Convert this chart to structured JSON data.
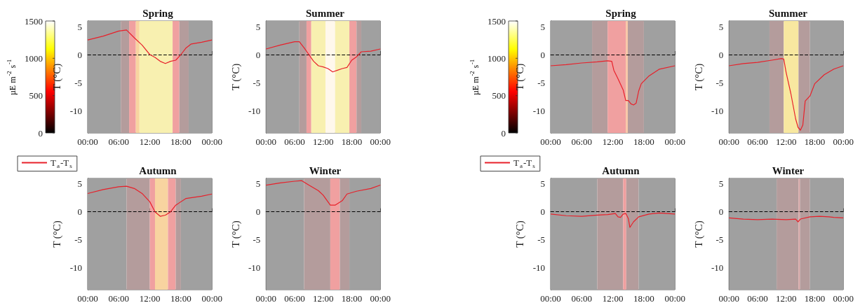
{
  "chart_data": [
    {
      "type": "line",
      "title": "Spring",
      "ylabel": "T (°C)",
      "clabel": "µE m$^{-2}$ s$^{-1}$",
      "clim": [
        0,
        1500
      ],
      "cticks": [
        0,
        500,
        1000,
        1500
      ],
      "xlim": [
        0,
        24
      ],
      "xticks": [
        {
          "value": 0,
          "label": "00:00"
        },
        {
          "value": 6,
          "label": "06:00"
        },
        {
          "value": 12,
          "label": "12:00"
        },
        {
          "value": 18,
          "label": "18:00"
        },
        {
          "value": 24,
          "label": "00:00"
        }
      ],
      "ylim": [
        -14,
        6
      ],
      "yticks": [
        -10,
        -5,
        0,
        5
      ],
      "ref_lines": [
        {
          "axis": "y",
          "value": 0,
          "color": "#000000",
          "line_style": "dashed"
        }
      ],
      "bands": [
        {
          "axis": "x",
          "from": 0,
          "to": 6.4,
          "color": "#a0a0a0"
        },
        {
          "axis": "x",
          "from": 6.4,
          "to": 8,
          "color": "#b49c9c"
        },
        {
          "axis": "x",
          "from": 8,
          "to": 9.3,
          "color": "#f0a0a0"
        },
        {
          "axis": "x",
          "from": 9.3,
          "to": 10,
          "color": "#f8d4a0"
        },
        {
          "axis": "x",
          "from": 10,
          "to": 16.4,
          "color": "#f8f0b0"
        },
        {
          "axis": "x",
          "from": 16.4,
          "to": 17.7,
          "color": "#f0a0a0"
        },
        {
          "axis": "x",
          "from": 17.7,
          "to": 19.5,
          "color": "#b49c9c"
        },
        {
          "axis": "x",
          "from": 19.5,
          "to": 24,
          "color": "#a0a0a0"
        }
      ],
      "series": [
        {
          "color": "#e8202a",
          "x": [
            0,
            3,
            6,
            7.5,
            9,
            10.5,
            12,
            13,
            14,
            15,
            16,
            17,
            18,
            19,
            20,
            22,
            24
          ],
          "values": [
            2.6,
            3.3,
            4.2,
            4.4,
            3.0,
            1.7,
            0.0,
            -0.5,
            -1.2,
            -1.6,
            -1.2,
            -1.0,
            0.0,
            1.2,
            1.9,
            2.2,
            2.6
          ]
        }
      ]
    },
    {
      "type": "line",
      "title": "Summer",
      "ylabel": "T (°C)",
      "xlim": [
        0,
        24
      ],
      "xticks": [
        {
          "value": 0,
          "label": "00:00"
        },
        {
          "value": 6,
          "label": "06:00"
        },
        {
          "value": 12,
          "label": "12:00"
        },
        {
          "value": 18,
          "label": "18:00"
        },
        {
          "value": 24,
          "label": "00:00"
        }
      ],
      "ylim": [
        -14,
        6
      ],
      "yticks": [
        -10,
        -5,
        0,
        5
      ],
      "ref_lines": [
        {
          "axis": "y",
          "value": 0,
          "color": "#000000",
          "line_style": "dashed"
        }
      ],
      "bands": [
        {
          "axis": "x",
          "from": 0,
          "to": 7,
          "color": "#a0a0a0"
        },
        {
          "axis": "x",
          "from": 7,
          "to": 8.5,
          "color": "#b49c9c"
        },
        {
          "axis": "x",
          "from": 8.5,
          "to": 9.5,
          "color": "#f0a0a0"
        },
        {
          "axis": "x",
          "from": 9.5,
          "to": 12.5,
          "color": "#f8f0b0"
        },
        {
          "axis": "x",
          "from": 12.5,
          "to": 14.5,
          "color": "#fff8ec"
        },
        {
          "axis": "x",
          "from": 14.5,
          "to": 17.5,
          "color": "#f8f0b0"
        },
        {
          "axis": "x",
          "from": 17.5,
          "to": 19,
          "color": "#f0a0a0"
        },
        {
          "axis": "x",
          "from": 19,
          "to": 20,
          "color": "#b49c9c"
        },
        {
          "axis": "x",
          "from": 20,
          "to": 24,
          "color": "#a0a0a0"
        }
      ],
      "series": [
        {
          "color": "#e8202a",
          "x": [
            0,
            3,
            6,
            7,
            8,
            9,
            10,
            11,
            12,
            13,
            14,
            15,
            16,
            17,
            18,
            19,
            20,
            22,
            24
          ],
          "values": [
            1.0,
            1.7,
            2.3,
            2.3,
            1.2,
            0.0,
            -1.2,
            -2.0,
            -2.2,
            -2.5,
            -3.1,
            -2.8,
            -2.5,
            -2.3,
            -1.0,
            -0.4,
            0.5,
            0.6,
            1.0
          ]
        }
      ]
    },
    {
      "type": "line",
      "title": "Autumn",
      "ylabel": "T (°C)",
      "legend": "top left",
      "xlim": [
        0,
        24
      ],
      "xticks": [
        {
          "value": 0,
          "label": "00:00"
        },
        {
          "value": 6,
          "label": "06:00"
        },
        {
          "value": 12,
          "label": "12:00"
        },
        {
          "value": 18,
          "label": "18:00"
        },
        {
          "value": 24,
          "label": "00:00"
        }
      ],
      "ylim": [
        -14,
        6
      ],
      "yticks": [
        -10,
        -5,
        0,
        5
      ],
      "ref_lines": [
        {
          "axis": "y",
          "value": 0,
          "color": "#000000",
          "line_style": "dashed"
        }
      ],
      "bands": [
        {
          "axis": "x",
          "from": 0,
          "to": 7.5,
          "color": "#a0a0a0"
        },
        {
          "axis": "x",
          "from": 7.5,
          "to": 12,
          "color": "#b49c9c"
        },
        {
          "axis": "x",
          "from": 12,
          "to": 13,
          "color": "#f0a0a0"
        },
        {
          "axis": "x",
          "from": 13,
          "to": 15.5,
          "color": "#f8d4a0"
        },
        {
          "axis": "x",
          "from": 15.5,
          "to": 17,
          "color": "#f0a0a0"
        },
        {
          "axis": "x",
          "from": 17,
          "to": 18,
          "color": "#b49c9c"
        },
        {
          "axis": "x",
          "from": 18,
          "to": 24,
          "color": "#a0a0a0"
        }
      ],
      "series": [
        {
          "name": "T$_{a}$-T$_{s}$",
          "color": "#e8202a",
          "x": [
            0,
            3,
            6,
            7.5,
            9,
            10.5,
            12,
            13,
            14,
            15,
            16,
            17,
            19,
            22,
            24
          ],
          "values": [
            3.3,
            4.0,
            4.5,
            4.6,
            4.2,
            3.3,
            1.8,
            0.0,
            -0.8,
            -0.6,
            0.0,
            1.2,
            2.4,
            2.8,
            3.2
          ]
        }
      ]
    },
    {
      "type": "line",
      "title": "Winter",
      "ylabel": "T (°C)",
      "xlim": [
        0,
        24
      ],
      "xticks": [
        {
          "value": 0,
          "label": "00:00"
        },
        {
          "value": 6,
          "label": "06:00"
        },
        {
          "value": 12,
          "label": "12:00"
        },
        {
          "value": 18,
          "label": "18:00"
        },
        {
          "value": 24,
          "label": "00:00"
        }
      ],
      "ylim": [
        -14,
        6
      ],
      "yticks": [
        -10,
        -5,
        0,
        5
      ],
      "ref_lines": [
        {
          "axis": "y",
          "value": 0,
          "color": "#000000",
          "line_style": "dashed"
        }
      ],
      "bands": [
        {
          "axis": "x",
          "from": 0,
          "to": 8,
          "color": "#a0a0a0"
        },
        {
          "axis": "x",
          "from": 8,
          "to": 13.5,
          "color": "#b49c9c"
        },
        {
          "axis": "x",
          "from": 13.5,
          "to": 15.5,
          "color": "#f0a0a0"
        },
        {
          "axis": "x",
          "from": 15.5,
          "to": 17.5,
          "color": "#b49c9c"
        },
        {
          "axis": "x",
          "from": 17.5,
          "to": 24,
          "color": "#a0a0a0"
        }
      ],
      "series": [
        {
          "color": "#e8202a",
          "x": [
            0,
            3,
            6,
            7.5,
            9,
            11,
            12,
            13.5,
            14.5,
            16,
            17,
            19,
            22,
            24
          ],
          "values": [
            4.8,
            5.2,
            5.5,
            5.6,
            4.8,
            3.8,
            3.0,
            1.2,
            1.2,
            2.0,
            3.2,
            3.7,
            4.2,
            4.8
          ]
        }
      ]
    },
    {
      "type": "line",
      "title": "Spring",
      "ylabel": "T (°C)",
      "clabel": "µE m$^{-2}$ s$^{-1}$",
      "clim": [
        0,
        1500
      ],
      "cticks": [
        0,
        500,
        1000,
        1500
      ],
      "xlim": [
        0,
        24
      ],
      "xticks": [
        {
          "value": 0,
          "label": "00:00"
        },
        {
          "value": 6,
          "label": "06:00"
        },
        {
          "value": 12,
          "label": "12:00"
        },
        {
          "value": 18,
          "label": "18:00"
        },
        {
          "value": 24,
          "label": "00:00"
        }
      ],
      "ylim": [
        -14,
        6
      ],
      "yticks": [
        -10,
        -5,
        0,
        5
      ],
      "ref_lines": [
        {
          "axis": "y",
          "value": 0,
          "color": "#000000",
          "line_style": "dashed"
        }
      ],
      "bands": [
        {
          "axis": "x",
          "from": 0,
          "to": 8,
          "color": "#a0a0a0"
        },
        {
          "axis": "x",
          "from": 8,
          "to": 11,
          "color": "#b49c9c"
        },
        {
          "axis": "x",
          "from": 11,
          "to": 14.5,
          "color": "#f0a0a0"
        },
        {
          "axis": "x",
          "from": 14.5,
          "to": 14.9,
          "color": "#f8c8a8"
        },
        {
          "axis": "x",
          "from": 14.9,
          "to": 18,
          "color": "#b49c9c"
        },
        {
          "axis": "x",
          "from": 18,
          "to": 24,
          "color": "#a0a0a0"
        }
      ],
      "series": [
        {
          "color": "#e8202a",
          "x": [
            0,
            3,
            6,
            9,
            11,
            11.8,
            12.2,
            13,
            14,
            14.5,
            15,
            15.5,
            16,
            16.5,
            17,
            17.5,
            19,
            21,
            24
          ],
          "values": [
            -2.0,
            -1.8,
            -1.5,
            -1.3,
            -1.1,
            -1.2,
            -2.8,
            -4.3,
            -6.3,
            -8.2,
            -8.2,
            -8.8,
            -9.0,
            -8.7,
            -6.5,
            -5.2,
            -3.8,
            -2.6,
            -2.0
          ]
        }
      ]
    },
    {
      "type": "line",
      "title": "Summer",
      "ylabel": "T (°C)",
      "xlim": [
        0,
        24
      ],
      "xticks": [
        {
          "value": 0,
          "label": "00:00"
        },
        {
          "value": 6,
          "label": "06:00"
        },
        {
          "value": 12,
          "label": "12:00"
        },
        {
          "value": 18,
          "label": "18:00"
        },
        {
          "value": 24,
          "label": "00:00"
        }
      ],
      "ylim": [
        -14,
        6
      ],
      "yticks": [
        -10,
        -5,
        0,
        5
      ],
      "ref_lines": [
        {
          "axis": "y",
          "value": 0,
          "color": "#000000",
          "line_style": "dashed"
        }
      ],
      "bands": [
        {
          "axis": "x",
          "from": 0,
          "to": 8.5,
          "color": "#a0a0a0"
        },
        {
          "axis": "x",
          "from": 8.5,
          "to": 11.5,
          "color": "#b49c9c"
        },
        {
          "axis": "x",
          "from": 11.5,
          "to": 14.6,
          "color": "#f8e8a0"
        },
        {
          "axis": "x",
          "from": 14.6,
          "to": 17,
          "color": "#b49c9c"
        },
        {
          "axis": "x",
          "from": 17,
          "to": 24,
          "color": "#a0a0a0"
        }
      ],
      "series": [
        {
          "color": "#e8202a",
          "x": [
            0,
            3,
            6,
            9,
            11,
            11.5,
            12,
            13,
            14,
            14.5,
            15,
            15.5,
            16,
            17,
            18,
            20,
            22,
            24
          ],
          "values": [
            -2.0,
            -1.6,
            -1.4,
            -1.0,
            -0.7,
            -0.8,
            -3.2,
            -7.0,
            -11.5,
            -13.0,
            -13.5,
            -12.6,
            -8.3,
            -7.4,
            -5.2,
            -3.6,
            -2.6,
            -2.0
          ]
        }
      ]
    },
    {
      "type": "line",
      "title": "Autumn",
      "ylabel": "T (°C)",
      "legend": "top left",
      "xlim": [
        0,
        24
      ],
      "xticks": [
        {
          "value": 0,
          "label": "00:00"
        },
        {
          "value": 6,
          "label": "06:00"
        },
        {
          "value": 12,
          "label": "12:00"
        },
        {
          "value": 18,
          "label": "18:00"
        },
        {
          "value": 24,
          "label": "00:00"
        }
      ],
      "ylim": [
        -14,
        6
      ],
      "yticks": [
        -10,
        -5,
        0,
        5
      ],
      "ref_lines": [
        {
          "axis": "y",
          "value": 0,
          "color": "#000000",
          "line_style": "dashed"
        }
      ],
      "bands": [
        {
          "axis": "x",
          "from": 0,
          "to": 9,
          "color": "#a0a0a0"
        },
        {
          "axis": "x",
          "from": 9,
          "to": 14,
          "color": "#b49c9c"
        },
        {
          "axis": "x",
          "from": 14,
          "to": 14.6,
          "color": "#f0a0a0"
        },
        {
          "axis": "x",
          "from": 14.6,
          "to": 17,
          "color": "#b49c9c"
        },
        {
          "axis": "x",
          "from": 17,
          "to": 24,
          "color": "#a0a0a0"
        }
      ],
      "series": [
        {
          "name": "T$_{a}$-T$_{s}$",
          "color": "#e8202a",
          "x": [
            0,
            3,
            6,
            9,
            11,
            12.5,
            13,
            13.5,
            14,
            14.5,
            15,
            15.3,
            16,
            17,
            19,
            21,
            24
          ],
          "values": [
            -0.4,
            -0.7,
            -0.8,
            -0.6,
            -0.5,
            -0.3,
            -0.9,
            -1.0,
            -0.4,
            -0.3,
            -1.2,
            -2.8,
            -1.8,
            -0.9,
            -0.4,
            -0.2,
            -0.4
          ]
        }
      ]
    },
    {
      "type": "line",
      "title": "Winter",
      "ylabel": "T (°C)",
      "xlim": [
        0,
        24
      ],
      "xticks": [
        {
          "value": 0,
          "label": "00:00"
        },
        {
          "value": 6,
          "label": "06:00"
        },
        {
          "value": 12,
          "label": "12:00"
        },
        {
          "value": 18,
          "label": "18:00"
        },
        {
          "value": 24,
          "label": "00:00"
        }
      ],
      "ylim": [
        -14,
        6
      ],
      "yticks": [
        -10,
        -5,
        0,
        5
      ],
      "ref_lines": [
        {
          "axis": "y",
          "value": 0,
          "color": "#000000",
          "line_style": "dashed"
        }
      ],
      "bands": [
        {
          "axis": "x",
          "from": 0,
          "to": 10,
          "color": "#a0a0a0"
        },
        {
          "axis": "x",
          "from": 10,
          "to": 14.6,
          "color": "#b49c9c"
        },
        {
          "axis": "x",
          "from": 14.6,
          "to": 14.9,
          "color": "#d8a4a4"
        },
        {
          "axis": "x",
          "from": 14.9,
          "to": 17,
          "color": "#b49c9c"
        },
        {
          "axis": "x",
          "from": 17,
          "to": 24,
          "color": "#a0a0a0"
        }
      ],
      "series": [
        {
          "color": "#e8202a",
          "x": [
            0,
            3,
            6,
            9,
            12,
            14,
            14.5,
            15,
            17,
            19,
            21,
            22,
            24
          ],
          "values": [
            -1.1,
            -1.3,
            -1.4,
            -1.3,
            -1.4,
            -1.3,
            -1.8,
            -1.3,
            -0.9,
            -0.8,
            -0.9,
            -1.0,
            -1.1
          ]
        }
      ]
    }
  ]
}
